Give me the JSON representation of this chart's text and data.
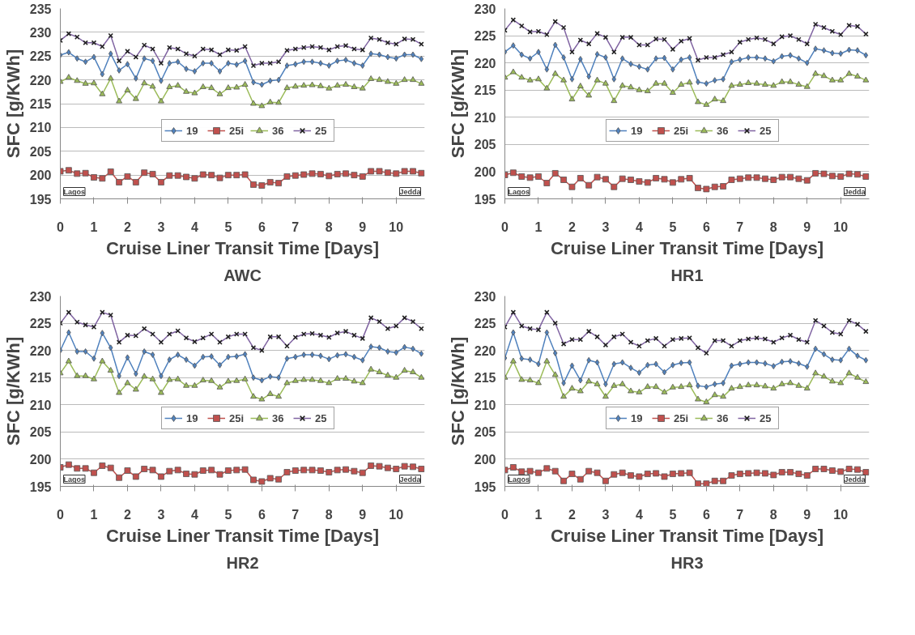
{
  "chart_data": [
    {
      "type": "line",
      "title": "AWC",
      "xlabel": "Cruise Liner Transit Time [Days]",
      "ylabel": "SFC [g/KWh]",
      "annotations": [
        "Lagos",
        "Jedda"
      ],
      "grid": "y",
      "legend": "bottom",
      "xlim": [
        0,
        10.85
      ],
      "xticks": [
        0,
        1,
        2,
        3,
        4,
        5,
        6,
        7,
        8,
        9,
        10
      ],
      "ylim": [
        195,
        235
      ],
      "yticks": [
        195,
        200,
        205,
        210,
        215,
        220,
        225,
        230,
        235
      ],
      "x": [
        0,
        0.25,
        0.5,
        0.75,
        1,
        1.25,
        1.5,
        1.75,
        2,
        2.25,
        2.5,
        2.75,
        3,
        3.25,
        3.5,
        3.75,
        4,
        4.25,
        4.5,
        4.75,
        5,
        5.25,
        5.5,
        5.75,
        6,
        6.25,
        6.5,
        6.75,
        7,
        7.25,
        7.5,
        7.75,
        8,
        8.25,
        8.5,
        8.75,
        9,
        9.25,
        9.5,
        9.75,
        10,
        10.25,
        10.5,
        10.75
      ],
      "series": [
        {
          "name": "19",
          "color": "#4f81bd",
          "marker": "diamond",
          "values": [
            225.2,
            225.8,
            224.5,
            223.8,
            224.8,
            221.2,
            225.5,
            222,
            223.3,
            220.3,
            224.5,
            224,
            219.8,
            223.5,
            223.8,
            222.3,
            221.8,
            223.5,
            223.5,
            221.8,
            223.5,
            223.2,
            224,
            219.5,
            219,
            219.8,
            220,
            223,
            223.3,
            223.8,
            223.8,
            223.5,
            223,
            224,
            224.2,
            223.5,
            223,
            225.5,
            225.3,
            224.8,
            224.5,
            225.3,
            225.3,
            224.4
          ]
        },
        {
          "name": "25i",
          "color": "#c0504d",
          "marker": "square",
          "values": [
            200.8,
            201,
            200.3,
            200.4,
            199.5,
            199.3,
            200.7,
            198.5,
            199.7,
            198.5,
            200.5,
            200.2,
            198.5,
            199.9,
            199.9,
            199.6,
            199.3,
            200.1,
            200,
            199.4,
            200,
            200,
            200.1,
            198,
            197.8,
            198.5,
            198.3,
            199.7,
            199.9,
            200.1,
            200.3,
            200.2,
            199.8,
            200.2,
            200.3,
            200,
            199.7,
            200.8,
            200.8,
            200.5,
            200.3,
            200.8,
            200.8,
            200.4
          ]
        },
        {
          "name": "36",
          "color": "#9bbb59",
          "marker": "triangle",
          "values": [
            219.6,
            220.5,
            219.8,
            219.2,
            219.3,
            217,
            220.3,
            215.5,
            217.8,
            216,
            219.3,
            218.6,
            215.5,
            218.5,
            218.8,
            217.5,
            217.2,
            218.5,
            218.3,
            217,
            218.3,
            218.4,
            219,
            215,
            214.5,
            215.3,
            215.2,
            218.3,
            218.6,
            218.8,
            218.9,
            218.7,
            218.2,
            218.8,
            219,
            218.5,
            218.2,
            220.2,
            220,
            219.6,
            219.2,
            220,
            220,
            219.2
          ]
        },
        {
          "name": "25",
          "color": "#8064a2",
          "marker": "cross",
          "values": [
            228.3,
            229.7,
            229,
            227.8,
            227.8,
            227,
            229.3,
            224,
            226,
            224.8,
            227.3,
            226.5,
            223.5,
            226.8,
            226.5,
            225.5,
            225,
            226.5,
            226.3,
            225.3,
            226.3,
            226.2,
            227,
            223,
            223.5,
            223.5,
            223.8,
            226.2,
            226.5,
            226.8,
            227,
            226.8,
            226.3,
            227,
            227.2,
            226.5,
            226.3,
            228.8,
            228.5,
            227.8,
            227.5,
            228.6,
            228.5,
            227.5
          ]
        }
      ]
    },
    {
      "type": "line",
      "title": "HR1",
      "xlabel": "Cruise Liner Transit Time [Days]",
      "ylabel": "SFC [g/KWh]",
      "annotations": [
        "Lagos",
        "Jedda"
      ],
      "grid": "y",
      "legend": "bottom",
      "xlim": [
        0,
        10.85
      ],
      "xticks": [
        0,
        1,
        2,
        3,
        4,
        5,
        6,
        7,
        8,
        9,
        10
      ],
      "ylim": [
        195,
        230
      ],
      "yticks": [
        195,
        200,
        205,
        210,
        215,
        220,
        225,
        230
      ],
      "x": [
        0,
        0.25,
        0.5,
        0.75,
        1,
        1.25,
        1.5,
        1.75,
        2,
        2.25,
        2.5,
        2.75,
        3,
        3.25,
        3.5,
        3.75,
        4,
        4.25,
        4.5,
        4.75,
        5,
        5.25,
        5.5,
        5.75,
        6,
        6.25,
        6.5,
        6.75,
        7,
        7.25,
        7.5,
        7.75,
        8,
        8.25,
        8.5,
        8.75,
        9,
        9.25,
        9.5,
        9.75,
        10,
        10.25,
        10.5,
        10.75
      ],
      "series": [
        {
          "name": "19",
          "color": "#4f81bd",
          "marker": "diamond",
          "values": [
            222,
            223.2,
            221.5,
            220.8,
            222,
            218.8,
            223.3,
            221,
            217,
            220.7,
            217.5,
            221.6,
            221,
            217,
            220.8,
            219.8,
            219.3,
            218.8,
            220.8,
            220.9,
            218.8,
            220.6,
            221,
            216.5,
            216.2,
            216.8,
            217,
            220.2,
            220.6,
            221,
            221,
            220.8,
            220.3,
            221.2,
            221.4,
            220.8,
            220,
            222.6,
            222.3,
            221.8,
            221.7,
            222.4,
            222.3,
            221.4
          ]
        },
        {
          "name": "25i",
          "color": "#c0504d",
          "marker": "square",
          "values": [
            199.4,
            199.8,
            199.1,
            198.9,
            199.1,
            197.9,
            199.7,
            198.5,
            197.2,
            198.8,
            197.5,
            199,
            198.6,
            197.2,
            198.7,
            198.5,
            198.2,
            198,
            198.8,
            198.6,
            198,
            198.6,
            198.8,
            197,
            196.8,
            197.2,
            197.3,
            198.5,
            198.7,
            198.9,
            198.9,
            198.7,
            198.5,
            199,
            199,
            198.7,
            198.4,
            199.7,
            199.6,
            199.2,
            199.1,
            199.6,
            199.5,
            199.1
          ]
        },
        {
          "name": "36",
          "color": "#9bbb59",
          "marker": "triangle",
          "values": [
            217.3,
            218.3,
            217.3,
            216.8,
            217,
            215.3,
            218,
            216.8,
            213.3,
            215.7,
            214,
            216.8,
            216.2,
            213,
            215.8,
            215.5,
            215,
            214.8,
            216.2,
            216.2,
            214.5,
            216,
            216.4,
            212.8,
            212.3,
            213.3,
            213,
            215.8,
            216,
            216.3,
            216.2,
            216,
            215.8,
            216.5,
            216.5,
            216,
            215.6,
            218,
            217.6,
            216.8,
            216.8,
            218,
            217.5,
            216.8
          ]
        },
        {
          "name": "25",
          "color": "#8064a2",
          "marker": "cross",
          "values": [
            226,
            227.9,
            226.8,
            225.7,
            225.8,
            225.2,
            227.6,
            226.5,
            222,
            224.2,
            223.5,
            225.4,
            224.7,
            222,
            224.7,
            224.7,
            223.3,
            223.3,
            224.4,
            224.3,
            222.5,
            224,
            224.5,
            220.5,
            221,
            221,
            221.5,
            222,
            223.8,
            224.3,
            224.6,
            224.3,
            223.5,
            224.8,
            225,
            224.3,
            223.5,
            227.1,
            226.5,
            225.8,
            225.2,
            226.9,
            226.7,
            225.3
          ]
        }
      ]
    },
    {
      "type": "line",
      "title": "HR2",
      "xlabel": "Cruise Liner Transit Time [Days]",
      "ylabel": "SFC [g/KWh]",
      "annotations": [
        "Lagos",
        "Jedda"
      ],
      "grid": "y",
      "legend": "bottom",
      "xlim": [
        0,
        10.85
      ],
      "xticks": [
        0,
        1,
        2,
        3,
        4,
        5,
        6,
        7,
        8,
        9,
        10
      ],
      "ylim": [
        195,
        230
      ],
      "yticks": [
        195,
        200,
        205,
        210,
        215,
        220,
        225,
        230
      ],
      "x": [
        0,
        0.25,
        0.5,
        0.75,
        1,
        1.25,
        1.5,
        1.75,
        2,
        2.25,
        2.5,
        2.75,
        3,
        3.25,
        3.5,
        3.75,
        4,
        4.25,
        4.5,
        4.75,
        5,
        5.25,
        5.5,
        5.75,
        6,
        6.25,
        6.5,
        6.75,
        7,
        7.25,
        7.5,
        7.75,
        8,
        8.25,
        8.5,
        8.75,
        9,
        9.25,
        9.5,
        9.75,
        10,
        10.25,
        10.5,
        10.75
      ],
      "series": [
        {
          "name": "19",
          "color": "#4f81bd",
          "marker": "diamond",
          "values": [
            220,
            223.3,
            219.8,
            219.8,
            218.5,
            223.2,
            220.5,
            215.3,
            218.7,
            215.7,
            219.8,
            219.2,
            215.3,
            218.3,
            219.2,
            218.3,
            217.2,
            218.8,
            218.9,
            217.3,
            218.8,
            218.9,
            219.3,
            215,
            214.5,
            215.2,
            215,
            218.5,
            218.8,
            219.2,
            219.2,
            219,
            218.4,
            219.1,
            219.3,
            218.8,
            218.2,
            220.7,
            220.5,
            219.8,
            219.6,
            220.6,
            220.3,
            219.4
          ]
        },
        {
          "name": "25i",
          "color": "#c0504d",
          "marker": "square",
          "values": [
            198.5,
            199,
            198.3,
            198.3,
            197.5,
            198.8,
            198.4,
            196.6,
            197.9,
            196.8,
            198.2,
            198,
            196.8,
            197.8,
            198,
            197.3,
            197.2,
            197.9,
            198,
            197.2,
            197.9,
            198,
            198.1,
            196.2,
            195.9,
            196.5,
            196.3,
            197.6,
            197.9,
            198,
            198,
            197.9,
            197.6,
            198,
            198.1,
            197.8,
            197.5,
            198.8,
            198.7,
            198.4,
            198.2,
            198.7,
            198.6,
            198.2
          ]
        },
        {
          "name": "36",
          "color": "#9bbb59",
          "marker": "triangle",
          "values": [
            215.8,
            218,
            215.3,
            215.3,
            214.7,
            218,
            216.3,
            212.2,
            214,
            212.8,
            215.2,
            214.7,
            212.2,
            214.6,
            214.7,
            213.5,
            213.5,
            214.5,
            214.4,
            213.2,
            214.3,
            214.4,
            214.7,
            211.5,
            211,
            212,
            211.5,
            214,
            214.4,
            214.6,
            214.6,
            214.4,
            214,
            214.8,
            214.8,
            214.3,
            214,
            216.5,
            216,
            215.4,
            215,
            216.3,
            216,
            215
          ]
        },
        {
          "name": "25",
          "color": "#8064a2",
          "marker": "cross",
          "values": [
            225,
            227,
            225.2,
            224.7,
            224.3,
            227,
            226.5,
            221.5,
            222.8,
            222.7,
            224,
            223,
            221.5,
            223,
            223.6,
            222.3,
            221.6,
            222.3,
            223,
            221.5,
            222.5,
            223,
            223,
            220.5,
            220,
            222.5,
            222.5,
            220.8,
            222.4,
            223,
            223.1,
            222.8,
            222.4,
            223.2,
            223.5,
            222.8,
            222.2,
            226,
            225.3,
            224,
            224.5,
            226,
            225.3,
            224
          ]
        }
      ]
    },
    {
      "type": "line",
      "title": "HR3",
      "xlabel": "Cruise Liner Transit Time [Days]",
      "ylabel": "SFC [g/KWh]",
      "annotations": [
        "Lagos",
        "Jedda"
      ],
      "grid": "y",
      "legend": "bottom",
      "xlim": [
        0,
        10.85
      ],
      "xticks": [
        0,
        1,
        2,
        3,
        4,
        5,
        6,
        7,
        8,
        9,
        10
      ],
      "ylim": [
        195,
        230
      ],
      "yticks": [
        195,
        200,
        205,
        210,
        215,
        220,
        225,
        230
      ],
      "x": [
        0,
        0.25,
        0.5,
        0.75,
        1,
        1.25,
        1.5,
        1.75,
        2,
        2.25,
        2.5,
        2.75,
        3,
        3.25,
        3.5,
        3.75,
        4,
        4.25,
        4.5,
        4.75,
        5,
        5.25,
        5.5,
        5.75,
        6,
        6.25,
        6.5,
        6.75,
        7,
        7.25,
        7.5,
        7.75,
        8,
        8.25,
        8.5,
        8.75,
        9,
        9.25,
        9.5,
        9.75,
        10,
        10.25,
        10.5,
        10.75
      ],
      "series": [
        {
          "name": "19",
          "color": "#4f81bd",
          "marker": "diamond",
          "values": [
            218.6,
            223.3,
            218.5,
            218.3,
            217.5,
            223.3,
            219.5,
            214,
            217.2,
            214.5,
            218.2,
            217.8,
            213.8,
            217.5,
            217.8,
            216.8,
            215.9,
            217.3,
            217.5,
            216,
            217.3,
            217.7,
            217.8,
            213.5,
            213.3,
            213.8,
            214,
            217.2,
            217.5,
            217.8,
            217.8,
            217.6,
            217.1,
            217.9,
            218,
            217.6,
            217,
            220.3,
            219.3,
            218.3,
            218.2,
            220.3,
            219,
            218.2
          ]
        },
        {
          "name": "25i",
          "color": "#c0504d",
          "marker": "square",
          "values": [
            198,
            198.5,
            197.7,
            197.8,
            197.5,
            198.3,
            197.8,
            196,
            197.3,
            196.3,
            197.8,
            197.5,
            196,
            197.2,
            197.5,
            197,
            196.8,
            197.3,
            197.4,
            196.8,
            197.3,
            197.4,
            197.5,
            195.5,
            195.5,
            196,
            196,
            197,
            197.3,
            197.4,
            197.5,
            197.4,
            197.1,
            197.6,
            197.6,
            197.3,
            197,
            198.2,
            198.2,
            197.9,
            197.7,
            198.2,
            198.1,
            197.6
          ]
        },
        {
          "name": "36",
          "color": "#9bbb59",
          "marker": "triangle",
          "values": [
            215,
            218,
            214.6,
            214.5,
            214,
            218,
            215.5,
            211.5,
            213,
            212.5,
            214.3,
            213.8,
            211.5,
            213.5,
            213.8,
            212.5,
            212.3,
            213.3,
            213.3,
            212.3,
            213.2,
            213.3,
            213.6,
            211,
            210.5,
            211.8,
            211.5,
            213,
            213.3,
            213.6,
            213.6,
            213.4,
            213,
            213.8,
            214,
            213.5,
            213,
            215.8,
            215.2,
            214.3,
            214,
            215.8,
            215,
            214.2
          ]
        },
        {
          "name": "25",
          "color": "#8064a2",
          "marker": "cross",
          "values": [
            224.3,
            227,
            224.5,
            224,
            223.8,
            227,
            225,
            221.2,
            222,
            222,
            223.5,
            222.5,
            221,
            222.5,
            223,
            221.5,
            220.8,
            221.8,
            222.2,
            220.8,
            222,
            222.2,
            222.3,
            220.5,
            219.5,
            221.8,
            221.8,
            220.8,
            221.8,
            222.1,
            222.3,
            222.1,
            221.5,
            222.3,
            222.8,
            222,
            221.5,
            225.5,
            224.5,
            223.3,
            223,
            225.5,
            224.8,
            223.5
          ]
        }
      ]
    }
  ]
}
